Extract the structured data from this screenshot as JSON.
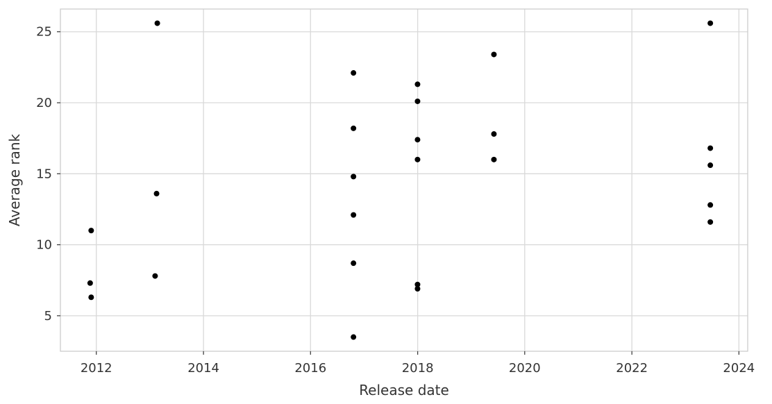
{
  "chart_data": {
    "type": "scatter",
    "title": "",
    "xlabel": "Release date",
    "ylabel": "Average rank",
    "x_type": "date",
    "xlim": [
      "2011-05-01",
      "2024-03-01"
    ],
    "ylim": [
      2.5,
      26.6
    ],
    "x_ticks": [
      "2012",
      "2014",
      "2016",
      "2018",
      "2020",
      "2022",
      "2024"
    ],
    "y_ticks": [
      5,
      10,
      15,
      20,
      25
    ],
    "grid": true,
    "legend": "none",
    "marker_color": "#000000",
    "points": [
      {
        "x": "2011-11-20",
        "y": 7.3
      },
      {
        "x": "2011-11-27",
        "y": 11.0
      },
      {
        "x": "2011-11-27",
        "y": 6.3
      },
      {
        "x": "2013-02-05",
        "y": 7.8
      },
      {
        "x": "2013-02-15",
        "y": 13.6
      },
      {
        "x": "2013-02-20",
        "y": 25.6
      },
      {
        "x": "2016-10-20",
        "y": 22.1
      },
      {
        "x": "2016-10-20",
        "y": 18.2
      },
      {
        "x": "2016-10-20",
        "y": 14.8
      },
      {
        "x": "2016-10-20",
        "y": 12.1
      },
      {
        "x": "2016-10-20",
        "y": 8.7
      },
      {
        "x": "2016-10-20",
        "y": 3.5
      },
      {
        "x": "2017-12-31",
        "y": 21.3
      },
      {
        "x": "2017-12-31",
        "y": 20.1
      },
      {
        "x": "2017-12-31",
        "y": 17.4
      },
      {
        "x": "2017-12-31",
        "y": 16.0
      },
      {
        "x": "2017-12-31",
        "y": 7.2
      },
      {
        "x": "2017-12-31",
        "y": 6.9
      },
      {
        "x": "2019-06-05",
        "y": 23.4
      },
      {
        "x": "2019-06-05",
        "y": 17.8
      },
      {
        "x": "2019-06-05",
        "y": 16.0
      },
      {
        "x": "2023-06-20",
        "y": 25.6
      },
      {
        "x": "2023-06-20",
        "y": 16.8
      },
      {
        "x": "2023-06-20",
        "y": 15.6
      },
      {
        "x": "2023-06-20",
        "y": 12.8
      },
      {
        "x": "2023-06-20",
        "y": 11.6
      }
    ]
  }
}
